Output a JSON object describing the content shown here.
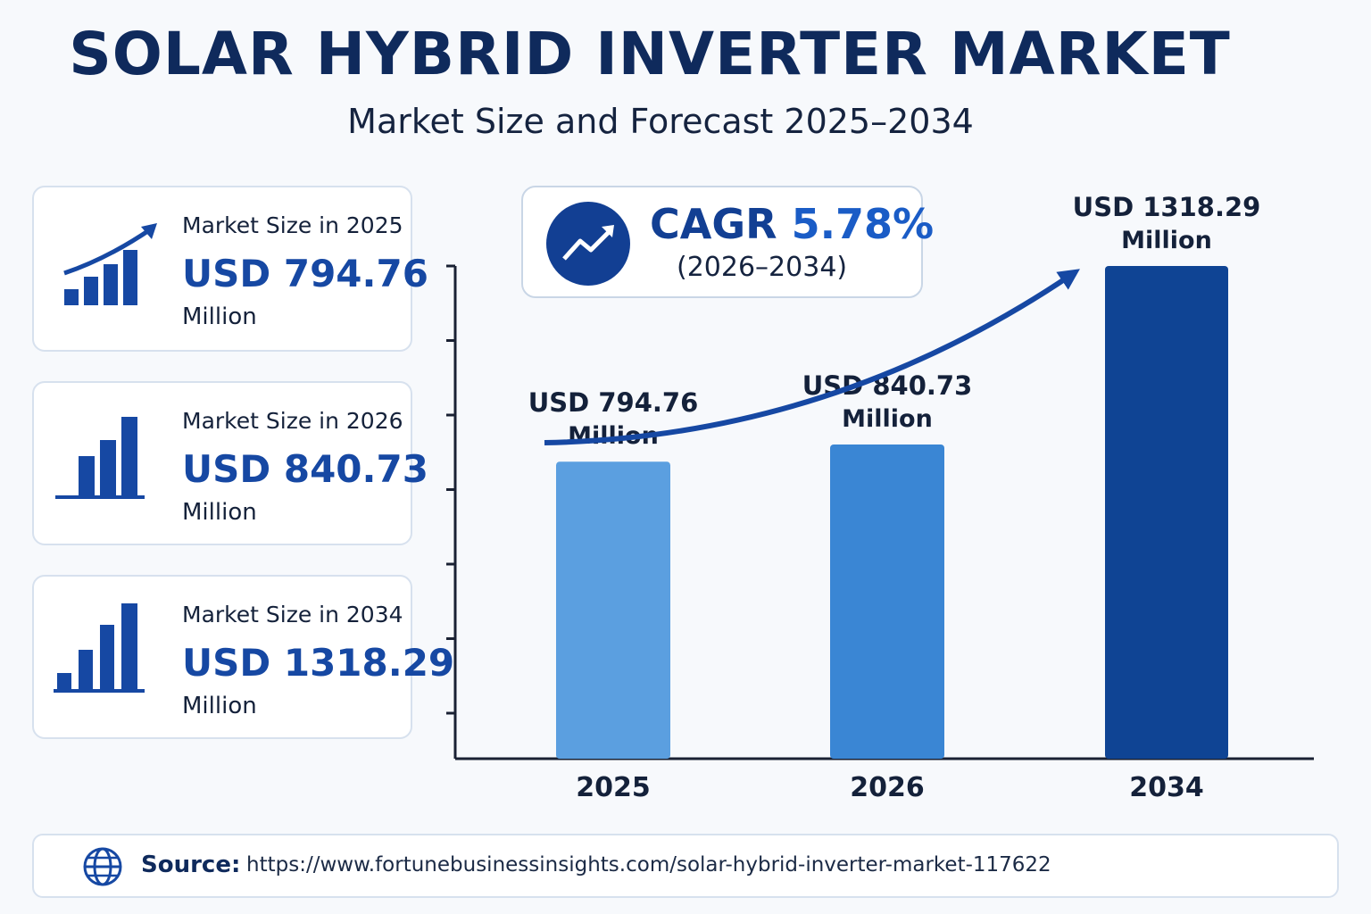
{
  "title": "SOLAR HYBRID INVERTER MARKET",
  "subtitle": "Market Size and Forecast 2025–2034",
  "cards": [
    {
      "label": "Market Size in 2025",
      "value": "USD 794.76",
      "unit": "Million",
      "icon": "rising-bar-chart-icon"
    },
    {
      "label": "Market Size in 2026",
      "value": "USD 840.73",
      "unit": "Million",
      "icon": "bar-chart-icon"
    },
    {
      "label": "Market Size in 2034",
      "value": "USD 1318.29",
      "unit": "Million",
      "icon": "bar-chart-icon"
    }
  ],
  "cagr": {
    "label": "CAGR",
    "value": "5.78%",
    "period": "(2026–2034)",
    "icon": "trend-up-icon"
  },
  "source": {
    "label": "Source:",
    "url": "https://www.fortunebusinessinsights.com/solar-hybrid-inverter-market-117622",
    "icon": "globe-icon"
  },
  "colors": {
    "title": "#0f2a5c",
    "accent": "#1648a3",
    "bar_light": "#5b9fe0",
    "bar_mid": "#3a86d4",
    "bar_dark": "#0f4494"
  },
  "chart_data": {
    "type": "bar",
    "categories": [
      "2025",
      "2026",
      "2034"
    ],
    "values": [
      794.76,
      840.73,
      1318.29
    ],
    "data_labels": [
      {
        "line1": "USD 794.76",
        "line2": "Million"
      },
      {
        "line1": "USD 840.73",
        "line2": "Million"
      },
      {
        "line1": "USD 1318.29",
        "line2": "Million"
      }
    ],
    "bar_colors": [
      "#5b9fe0",
      "#3a86d4",
      "#0f4494"
    ],
    "ylim": [
      0,
      1318.29
    ],
    "xlabel": "",
    "ylabel": "",
    "grid": false,
    "trend_arrow": true
  }
}
